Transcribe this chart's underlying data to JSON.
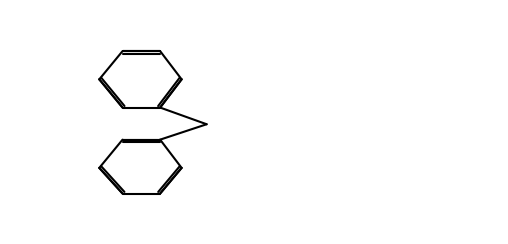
{
  "bg_color": "#ffffff",
  "line_color": "#000000",
  "line_width": 1.5,
  "font_size": 9,
  "fig_width": 5.08,
  "fig_height": 2.44,
  "dpi": 100
}
